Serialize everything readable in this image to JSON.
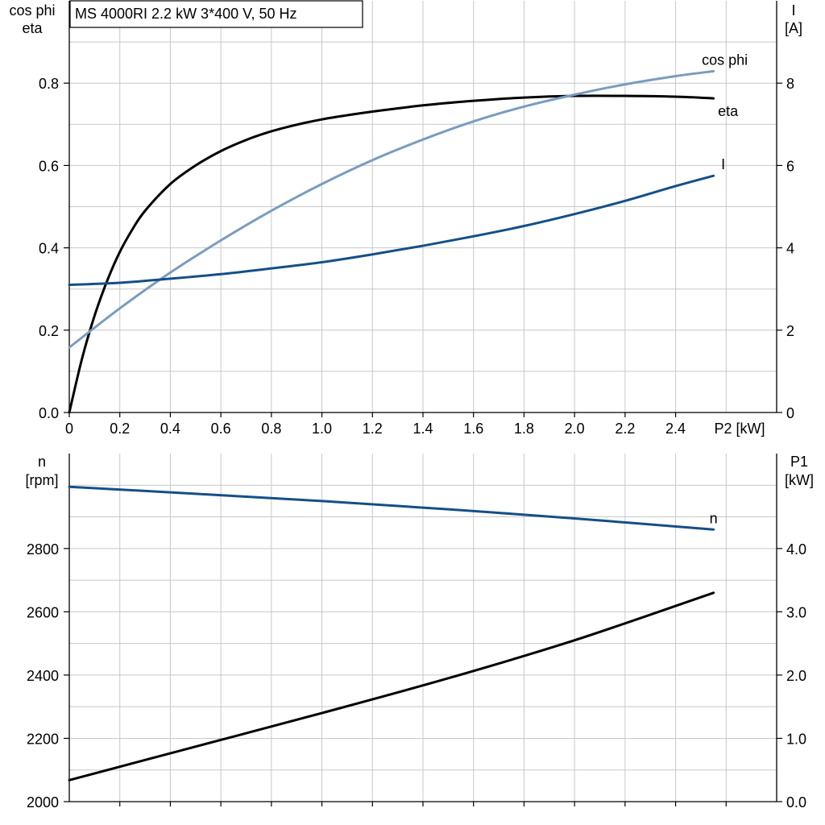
{
  "title": "MS 4000RI   2.2 kW   3*400 V, 50 Hz",
  "colors": {
    "black": "#000000",
    "light_blue": "#7a9cbe",
    "dark_blue": "#154f86",
    "grid": "#c8c8c8"
  },
  "chart_data": [
    {
      "type": "line",
      "x_label": "P2 [kW]",
      "x_ticks": [
        "0",
        "0.2",
        "0.4",
        "0.6",
        "0.8",
        "1.0",
        "1.2",
        "1.4",
        "1.6",
        "1.8",
        "2.0",
        "2.2",
        "2.4"
      ],
      "xlim": [
        0,
        2.8
      ],
      "left_axis_label": [
        "cos phi",
        "eta"
      ],
      "left_ticks": [
        "0.0",
        "0.2",
        "0.4",
        "0.6",
        "0.8"
      ],
      "left_ylim": [
        0,
        1.0
      ],
      "right_axis_label": [
        "I",
        "[A]"
      ],
      "right_ticks": [
        "0",
        "2",
        "4",
        "6",
        "8"
      ],
      "right_ylim": [
        0,
        10
      ],
      "grid": true,
      "series": [
        {
          "name": "eta",
          "axis": "left",
          "color": "#000000",
          "x": [
            0,
            0.05,
            0.1,
            0.15,
            0.2,
            0.25,
            0.3,
            0.4,
            0.5,
            0.6,
            0.7,
            0.8,
            0.9,
            1.0,
            1.1,
            1.2,
            1.4,
            1.6,
            1.8,
            2.0,
            2.2,
            2.4,
            2.55
          ],
          "y": [
            0.0,
            0.13,
            0.235,
            0.32,
            0.39,
            0.445,
            0.49,
            0.555,
            0.6,
            0.635,
            0.662,
            0.683,
            0.699,
            0.712,
            0.722,
            0.731,
            0.746,
            0.757,
            0.765,
            0.769,
            0.769,
            0.767,
            0.763
          ]
        },
        {
          "name": "cos phi",
          "axis": "left",
          "color": "#7a9cbe",
          "x": [
            0,
            0.2,
            0.4,
            0.6,
            0.8,
            1.0,
            1.2,
            1.4,
            1.6,
            1.8,
            2.0,
            2.2,
            2.4,
            2.55
          ],
          "y": [
            0.158,
            0.253,
            0.34,
            0.418,
            0.49,
            0.555,
            0.613,
            0.663,
            0.707,
            0.743,
            0.772,
            0.797,
            0.817,
            0.829
          ]
        },
        {
          "name": "I",
          "axis": "right",
          "color": "#154f86",
          "x": [
            0,
            0.2,
            0.4,
            0.6,
            0.8,
            1.0,
            1.2,
            1.4,
            1.6,
            1.8,
            2.0,
            2.2,
            2.4,
            2.55
          ],
          "y": [
            3.1,
            3.15,
            3.25,
            3.36,
            3.5,
            3.65,
            3.84,
            4.05,
            4.28,
            4.53,
            4.82,
            5.14,
            5.5,
            5.75
          ]
        }
      ]
    },
    {
      "type": "line",
      "x_label": "",
      "xlim": [
        0,
        2.8
      ],
      "left_axis_label": [
        "n",
        "[rpm]"
      ],
      "left_ticks": [
        "2000",
        "2200",
        "2400",
        "2600",
        "2800"
      ],
      "left_ylim": [
        2000,
        3100
      ],
      "right_axis_label": [
        "P1",
        "[kW]"
      ],
      "right_ticks": [
        "0.0",
        "1.0",
        "2.0",
        "3.0",
        "4.0"
      ],
      "right_ylim": [
        0,
        5.5
      ],
      "grid": true,
      "series": [
        {
          "name": "n",
          "axis": "left",
          "color": "#154f86",
          "x": [
            0,
            0.5,
            1.0,
            1.5,
            2.0,
            2.55
          ],
          "y": [
            2995,
            2973,
            2950,
            2924,
            2895,
            2860
          ]
        },
        {
          "axis": "right",
          "color": "#000000",
          "x": [
            0,
            0.5,
            1.0,
            1.5,
            2.0,
            2.55
          ],
          "y": [
            0.34,
            0.87,
            1.4,
            1.95,
            2.55,
            3.3
          ]
        }
      ]
    }
  ]
}
